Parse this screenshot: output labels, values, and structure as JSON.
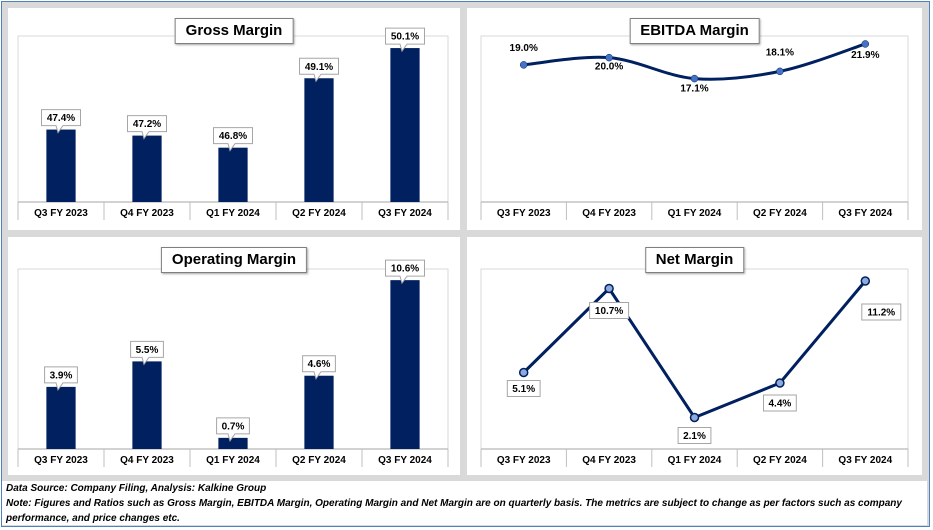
{
  "colors": {
    "bar": "#002060",
    "line": "#002060",
    "marker_ebitda": "#4472c4",
    "marker_net": "#4472c4"
  },
  "footer": {
    "source": "Data Source: Company Filing, Analysis: Kalkine Group",
    "note_line1": "Note: Figures and Ratios such as Gross Margin, EBITDA Margin, Operating Margin and Net Margin are on quarterly basis. The metrics are subject to change as per factors such as company",
    "note_line2": "performance, and price changes etc."
  },
  "chart_data": [
    {
      "type": "bar",
      "title": "Gross Margin",
      "categories": [
        "Q3 FY 2023",
        "Q4 FY 2023",
        "Q1 FY 2024",
        "Q2 FY 2024",
        "Q3 FY 2024"
      ],
      "values": [
        47.4,
        47.2,
        46.8,
        49.1,
        50.1
      ],
      "labels": [
        "47.4%",
        "47.2%",
        "46.8%",
        "49.1%",
        "50.1%"
      ],
      "ylim": [
        45.0,
        50.5
      ]
    },
    {
      "type": "line",
      "title": "EBITDA Margin",
      "categories": [
        "Q3 FY 2023",
        "Q4 FY 2023",
        "Q1 FY 2024",
        "Q2 FY 2024",
        "Q3 FY 2024"
      ],
      "values": [
        19.0,
        20.0,
        17.1,
        18.1,
        21.9
      ],
      "labels": [
        "19.0%",
        "20.0%",
        "17.1%",
        "18.1%",
        "21.9%"
      ],
      "ylim": [
        0,
        23
      ]
    },
    {
      "type": "bar",
      "title": "Operating Margin",
      "categories": [
        "Q3 FY 2023",
        "Q4 FY 2023",
        "Q1 FY 2024",
        "Q2 FY 2024",
        "Q3 FY 2024"
      ],
      "values": [
        3.9,
        5.5,
        0.7,
        4.6,
        10.6
      ],
      "labels": [
        "3.9%",
        "5.5%",
        "0.7%",
        "4.6%",
        "10.6%"
      ],
      "ylim": [
        0,
        11.3
      ]
    },
    {
      "type": "line",
      "title": "Net Margin",
      "categories": [
        "Q3 FY 2023",
        "Q4 FY 2023",
        "Q1 FY 2024",
        "Q2 FY 2024",
        "Q3 FY 2024"
      ],
      "values": [
        5.1,
        10.7,
        2.1,
        4.4,
        11.2
      ],
      "labels": [
        "5.1%",
        "10.7%",
        "2.1%",
        "4.4%",
        "11.2%"
      ],
      "ylim": [
        0,
        12
      ]
    }
  ]
}
